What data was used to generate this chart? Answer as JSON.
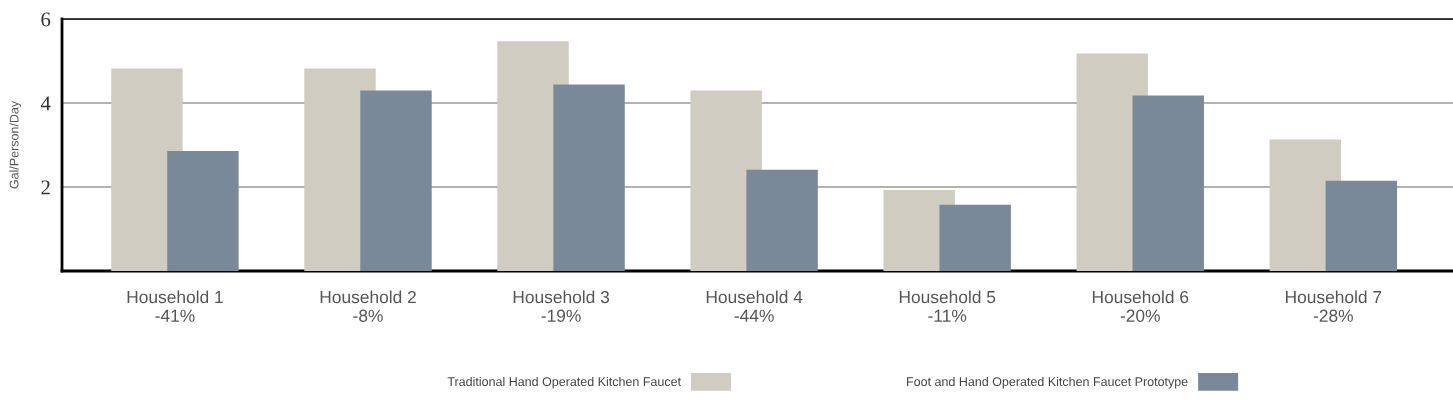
{
  "chart_data": {
    "type": "bar",
    "ylabel": "Gal/Person/Day",
    "categories": [
      "Household 1\n-41%",
      "Household 2\n-8%",
      "Household 3\n-19%",
      "Household 4\n-44%",
      "Household 5\n-11%",
      "Household 6\n-20%",
      "Household 7\n-28%"
    ],
    "series": [
      {
        "name": "Traditional Hand Operated Kitchen Faucet",
        "color": "#d0ccc2",
        "values": [
          4.82,
          4.82,
          5.47,
          4.3,
          1.93,
          5.18,
          3.13
        ]
      },
      {
        "name": "Foot and Hand Operated Kitchen Faucet Prototype",
        "color": "#7a8999",
        "values": [
          2.86,
          4.3,
          4.44,
          2.41,
          1.58,
          4.18,
          2.15
        ]
      }
    ],
    "ylim": [
      0,
      6
    ],
    "yticks": [
      2,
      4,
      6
    ],
    "grid": "y",
    "legend": "bottom"
  }
}
